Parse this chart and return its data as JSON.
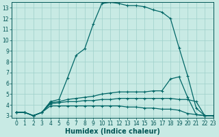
{
  "xlabel": "Humidex (Indice chaleur)",
  "xlim": [
    -0.5,
    23
  ],
  "ylim": [
    2.8,
    13.5
  ],
  "background_color": "#c8eae4",
  "line_color": "#006666",
  "grid_color": "#9dd0ca",
  "curves": {
    "main": {
      "x": [
        0,
        1,
        2,
        3,
        4,
        5,
        6,
        7,
        8,
        9,
        10,
        11,
        12,
        13,
        14,
        15,
        16,
        17,
        18,
        19,
        20,
        21,
        22,
        23
      ],
      "y": [
        3.3,
        3.3,
        3.0,
        3.3,
        4.3,
        4.5,
        6.5,
        8.6,
        9.2,
        11.5,
        13.4,
        13.5,
        13.4,
        13.2,
        13.2,
        13.1,
        12.8,
        12.6,
        12.0,
        9.3,
        6.7,
        3.7,
        3.0,
        3.0
      ]
    },
    "line2": {
      "x": [
        0,
        1,
        2,
        3,
        4,
        5,
        6,
        7,
        8,
        9,
        10,
        11,
        12,
        13,
        14,
        15,
        16,
        17,
        18,
        19,
        20,
        21,
        22,
        23
      ],
      "y": [
        3.3,
        3.3,
        3.0,
        3.3,
        4.2,
        4.3,
        4.5,
        4.6,
        4.7,
        4.8,
        5.0,
        5.1,
        5.2,
        5.2,
        5.2,
        5.2,
        5.3,
        5.3,
        6.4,
        6.6,
        4.7,
        3.1,
        3.0,
        3.0
      ]
    },
    "line3": {
      "x": [
        0,
        1,
        2,
        3,
        4,
        5,
        6,
        7,
        8,
        9,
        10,
        11,
        12,
        13,
        14,
        15,
        16,
        17,
        18,
        19,
        20,
        21,
        22,
        23
      ],
      "y": [
        3.3,
        3.3,
        3.0,
        3.3,
        4.1,
        4.2,
        4.3,
        4.3,
        4.4,
        4.4,
        4.5,
        4.5,
        4.6,
        4.6,
        4.6,
        4.6,
        4.6,
        4.6,
        4.6,
        4.5,
        4.5,
        4.3,
        3.0,
        3.0
      ]
    },
    "line4": {
      "x": [
        0,
        1,
        2,
        3,
        4,
        5,
        6,
        7,
        8,
        9,
        10,
        11,
        12,
        13,
        14,
        15,
        16,
        17,
        18,
        19,
        20,
        21,
        22,
        23
      ],
      "y": [
        3.3,
        3.3,
        3.0,
        3.3,
        3.9,
        3.9,
        3.9,
        3.9,
        3.9,
        3.9,
        3.9,
        3.9,
        3.9,
        3.8,
        3.8,
        3.7,
        3.7,
        3.6,
        3.6,
        3.5,
        3.2,
        3.1,
        3.0,
        3.0
      ]
    }
  },
  "yticks": [
    3,
    4,
    5,
    6,
    7,
    8,
    9,
    10,
    11,
    12,
    13
  ],
  "xticks": [
    0,
    1,
    2,
    3,
    4,
    5,
    6,
    7,
    8,
    9,
    10,
    11,
    12,
    13,
    14,
    15,
    16,
    17,
    18,
    19,
    20,
    21,
    22,
    23
  ],
  "marker": "+",
  "markersize": 3.5,
  "linewidth": 0.9,
  "xlabel_fontsize": 7,
  "tick_fontsize": 5.5,
  "tick_color": "#005555"
}
